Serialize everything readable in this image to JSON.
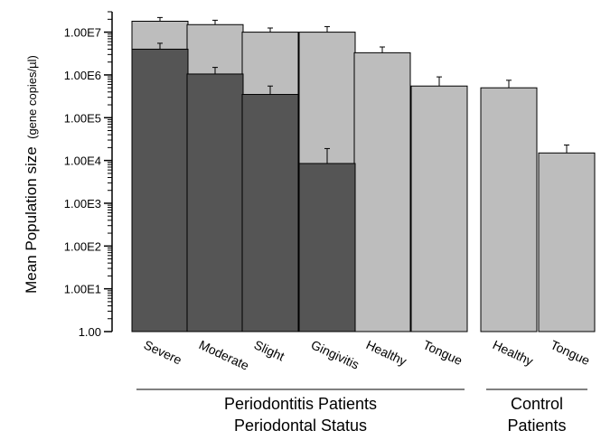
{
  "chart_data": {
    "type": "bar",
    "ylabel": "Mean Population size",
    "ylabel_unit": "(gene copies/µl)",
    "y_scale": "log",
    "ylim": [
      1,
      30000000
    ],
    "y_ticks": [
      {
        "value": 1,
        "label": "1.00"
      },
      {
        "value": 10,
        "label": "1.00E1"
      },
      {
        "value": 100,
        "label": "1.00E2"
      },
      {
        "value": 1000,
        "label": "1.00E3"
      },
      {
        "value": 10000,
        "label": "1.00E4"
      },
      {
        "value": 100000,
        "label": "1.00E5"
      },
      {
        "value": 1000000,
        "label": "1.00E6"
      },
      {
        "value": 10000000,
        "label": "1.00E7"
      }
    ],
    "categories": [
      "Severe",
      "Moderate",
      "Slight",
      "Gingivitis",
      "Healthy",
      "Tongue",
      "Healthy",
      "Tongue"
    ],
    "groups": [
      {
        "line1": "Periodontitis Patients",
        "line2": "Periodontal Status",
        "categories": [
          0,
          1,
          2,
          3,
          4,
          5
        ]
      },
      {
        "line1": "Control",
        "line2": "Patients",
        "categories": [
          6,
          7
        ]
      }
    ],
    "series": [
      {
        "values": [
          18000000,
          15000000,
          10000000,
          10000000,
          3300000,
          550000,
          500000,
          15000
        ],
        "error": [
          22000000,
          19000000,
          12500000,
          13500000,
          4500000,
          900000,
          750000,
          23000
        ],
        "color": "#bdbdbd"
      },
      {
        "values": [
          4000000,
          1050000,
          350000,
          8500,
          null,
          null,
          null,
          null
        ],
        "error": [
          5500000,
          1500000,
          550000,
          19000,
          null,
          null,
          null,
          null
        ],
        "color": "#555555"
      }
    ]
  }
}
